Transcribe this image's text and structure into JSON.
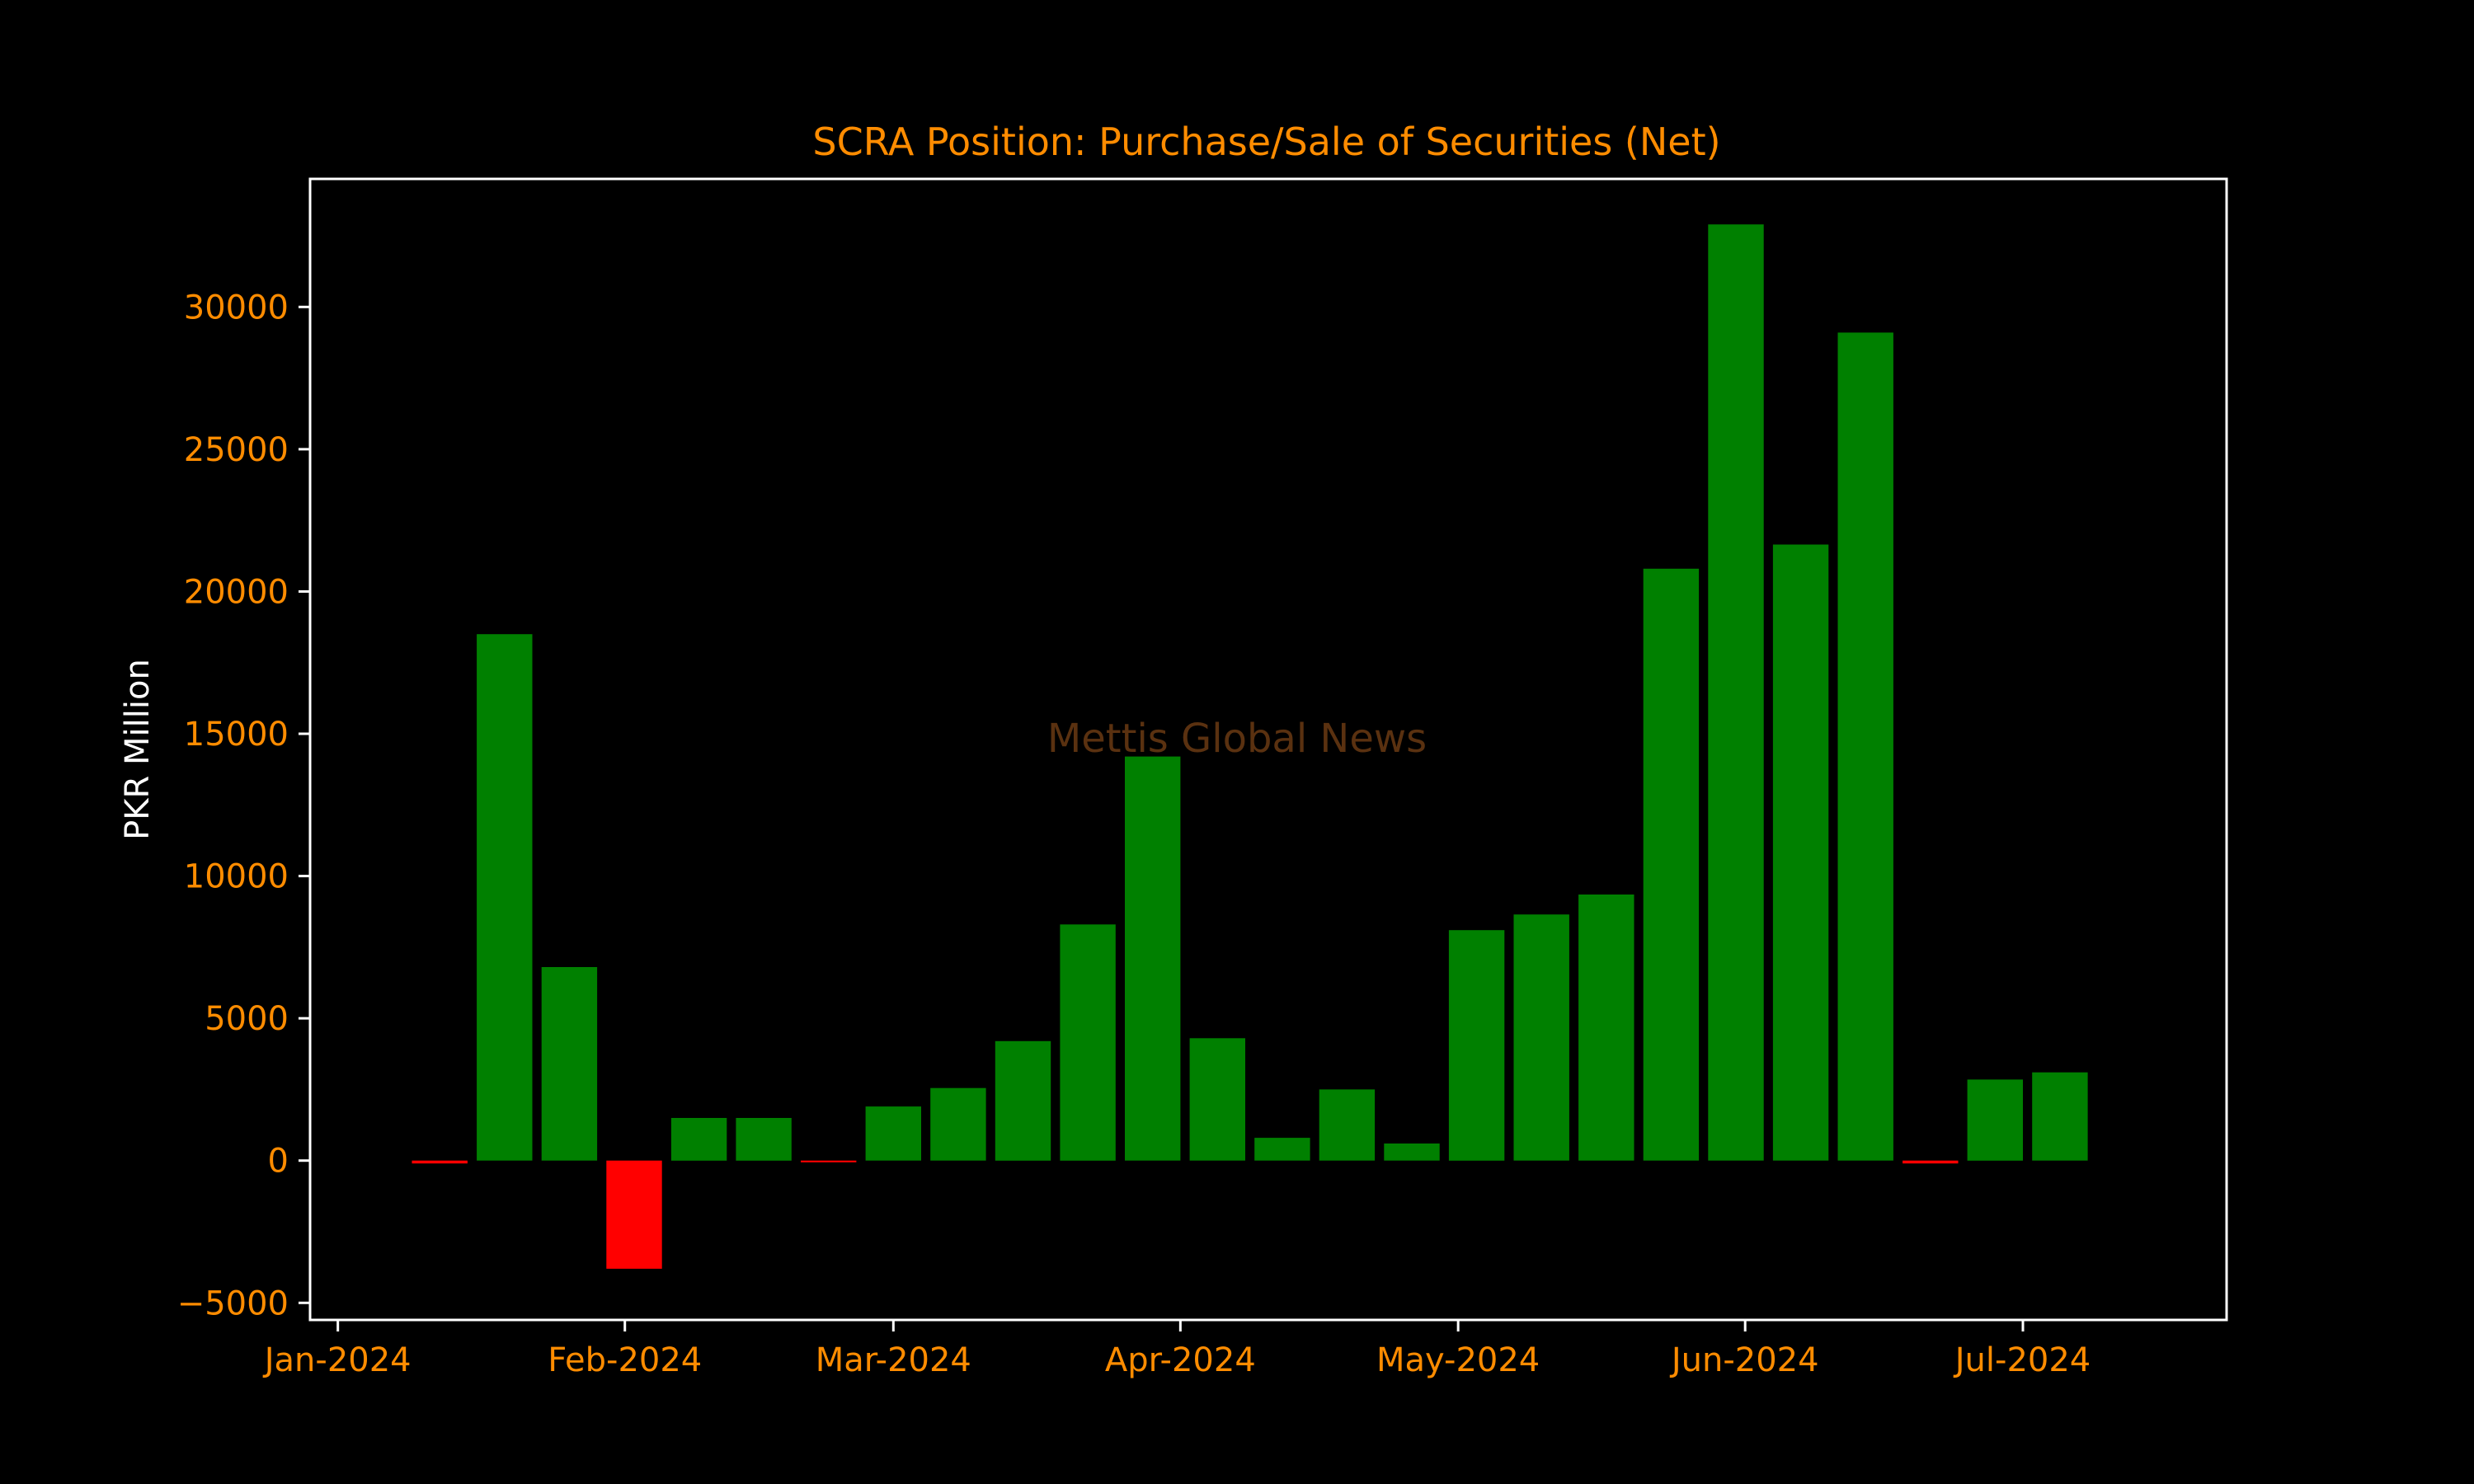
{
  "chart_data": {
    "type": "bar",
    "title": "SCRA Position: Purchase/Sale of Securities (Net)",
    "xlabel": "",
    "ylabel": "PKR Million",
    "watermark": "Mettis Global News",
    "x_range": [
      "2023-12-29",
      "2024-07-23"
    ],
    "ylim": [
      -5600,
      34500
    ],
    "yticks": [
      -5000,
      0,
      5000,
      10000,
      15000,
      20000,
      25000,
      30000
    ],
    "ytick_labels": [
      "−5000",
      "0",
      "5000",
      "10000",
      "15000",
      "20000",
      "25000",
      "30000"
    ],
    "xticks": [
      {
        "date": "2024-01-01",
        "label": "Jan-2024"
      },
      {
        "date": "2024-02-01",
        "label": "Feb-2024"
      },
      {
        "date": "2024-03-01",
        "label": "Mar-2024"
      },
      {
        "date": "2024-04-01",
        "label": "Apr-2024"
      },
      {
        "date": "2024-05-01",
        "label": "May-2024"
      },
      {
        "date": "2024-06-01",
        "label": "Jun-2024"
      },
      {
        "date": "2024-07-01",
        "label": "Jul-2024"
      }
    ],
    "bar_width_days": 6,
    "x": [
      "2024-01-12",
      "2024-01-19",
      "2024-01-26",
      "2024-02-02",
      "2024-02-09",
      "2024-02-16",
      "2024-02-23",
      "2024-03-01",
      "2024-03-08",
      "2024-03-15",
      "2024-03-22",
      "2024-03-29",
      "2024-04-05",
      "2024-04-12",
      "2024-04-19",
      "2024-04-26",
      "2024-05-03",
      "2024-05-10",
      "2024-05-17",
      "2024-05-24",
      "2024-05-31",
      "2024-06-07",
      "2024-06-14",
      "2024-06-21",
      "2024-06-28",
      "2024-07-05"
    ],
    "values": [
      -100,
      18500,
      6800,
      -3800,
      1500,
      1500,
      -60,
      1900,
      2550,
      4200,
      8300,
      14200,
      4300,
      800,
      2500,
      600,
      8100,
      8650,
      9350,
      20800,
      32900,
      21650,
      29100,
      -100,
      2850,
      3100
    ],
    "grid": false,
    "legend": "none",
    "colors": {
      "background": "#000000",
      "positive": "#008000",
      "negative": "#ff0000",
      "title": "#ff8c00",
      "tick_labels": "#ff8c00",
      "ylabel": "#ffffff",
      "axes": "#ffffff",
      "watermark": "#5a3110"
    }
  }
}
